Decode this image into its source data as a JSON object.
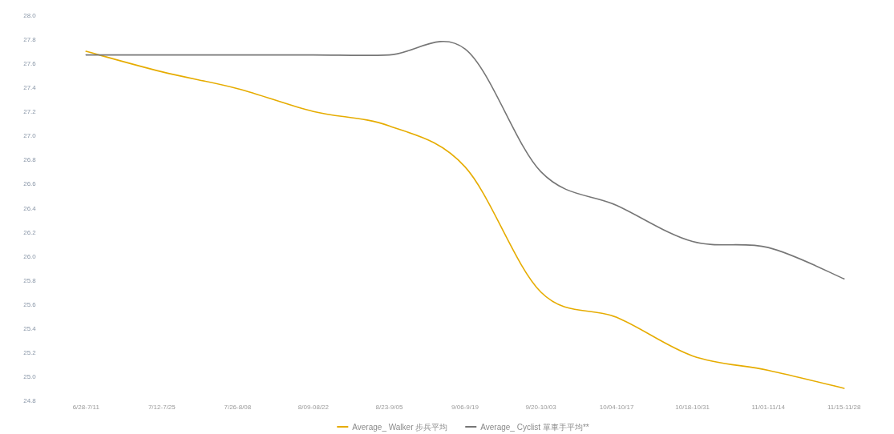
{
  "chart_data": {
    "type": "line",
    "categories": [
      "6/28-7/11",
      "7/12-7/25",
      "7/26-8/08",
      "8/09-08/22",
      "8/23-9/05",
      "9/06-9/19",
      "9/20-10/03",
      "10/04-10/17",
      "10/18-10/31",
      "11/01-11/14",
      "11/15-11/28"
    ],
    "series": [
      {
        "name": "Average_ Walker 步兵平均",
        "color": "#e6ac00",
        "values": [
          27.7,
          27.53,
          27.39,
          27.2,
          27.08,
          26.74,
          25.7,
          25.49,
          25.17,
          25.05,
          24.9
        ]
      },
      {
        "name": "Average_ Cyclist 單車手平均**",
        "color": "#767676",
        "values": [
          27.67,
          27.67,
          27.67,
          27.67,
          27.67,
          27.72,
          26.7,
          26.42,
          26.12,
          26.07,
          25.81
        ]
      }
    ],
    "ylim": [
      24.8,
      28.0
    ],
    "yticks": [
      {
        "value": 24.8,
        "label": "24.8"
      },
      {
        "value": 25.0,
        "label": "25.0"
      },
      {
        "value": 25.2,
        "label": "25.2"
      },
      {
        "value": 25.4,
        "label": "25.4"
      },
      {
        "value": 25.6,
        "label": "25.6"
      },
      {
        "value": 25.8,
        "label": "25.8"
      },
      {
        "value": 26.0,
        "label": "26.0"
      },
      {
        "value": 26.2,
        "label": "26.2"
      },
      {
        "value": 26.4,
        "label": "26.4"
      },
      {
        "value": 26.6,
        "label": "26.6"
      },
      {
        "value": 26.8,
        "label": "26.8"
      },
      {
        "value": 27.0,
        "label": "27.0"
      },
      {
        "value": 27.2,
        "label": "27.2"
      },
      {
        "value": 27.4,
        "label": "27.4"
      },
      {
        "value": 27.6,
        "label": "27.6"
      },
      {
        "value": 27.8,
        "label": "27.8"
      },
      {
        "value": 28.0,
        "label": "28.0"
      }
    ],
    "grid": false,
    "legend": "bottom",
    "marker": "none",
    "line_style": "solid"
  }
}
